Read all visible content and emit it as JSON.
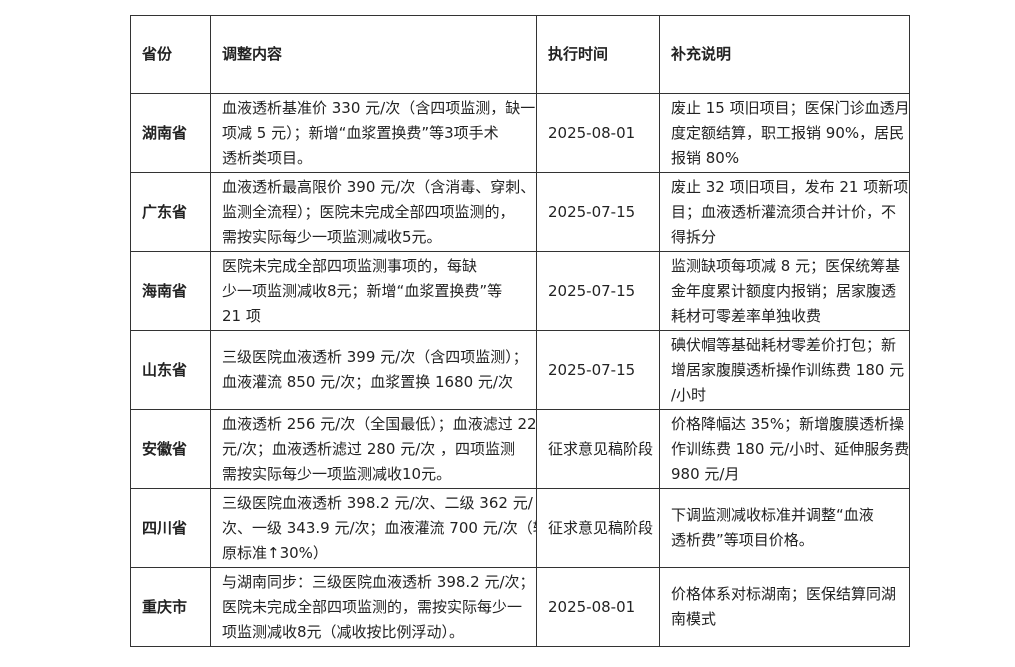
{
  "table": {
    "headers": [
      "省份",
      "调整内容",
      "执行时间",
      "补充说明"
    ],
    "rows": [
      {
        "province": "湖南省",
        "content": [
          "血液透析基准价 330 元/次（含四项监测，缺一",
          "项减 5 元）；新增“血浆置换费”等3项手术",
          "透析类项目。"
        ],
        "date": "2025-08-01",
        "note": [
          "废止 15 项旧项目；医保门诊血透月",
          "度定额结算，职工报销 90%，居民",
          "报销 80%"
        ]
      },
      {
        "province": "广东省",
        "content": [
          "血液透析最高限价 390 元/次（含消毒、穿刺、",
          "监测全流程）；医院未完成全部四项监测的，",
          "需按实际每少一项监测减收5元。"
        ],
        "date": "2025-07-15",
        "note": [
          "废止 32 项旧项目，发布 21 项新项",
          "目；血液透析灌流须合并计价，不",
          "得拆分"
        ]
      },
      {
        "province": "海南省",
        "content": [
          "医院未完成全部四项监测事项的，每缺",
          "少一项监测减收8元；新增“血浆置换费”等",
          "21 项"
        ],
        "date": "2025-07-15",
        "note": [
          "监测缺项每项减 8 元；医保统筹基",
          "金年度累计额度内报销；居家腹透",
          "耗材可零差率单独收费"
        ]
      },
      {
        "province": "山东省",
        "content": [
          "三级医院血液透析 399 元/次（含四项监测）；",
          "血液灌流 850 元/次；血浆置换 1680 元/次"
        ],
        "date": "2025-07-15",
        "note": [
          "碘伏帽等基础耗材零差价打包；新",
          "增居家腹膜透析操作训练费 180 元",
          "/小时"
        ]
      },
      {
        "province": "安徽省",
        "content": [
          "血液透析 256 元/次（全国最低）；血液滤过 220",
          "元/次；血液透析滤过 280 元/次 ，四项监测",
          "需按实际每少一项监测减收10元。"
        ],
        "date": "征求意见稿阶段",
        "note": [
          "价格降幅达 35%；新增腹膜透析操",
          "作训练费 180 元/小时、延伸服务费",
          "980 元/月"
        ]
      },
      {
        "province": "四川省",
        "content": [
          "三级医院血液透析 398.2 元/次、二级 362 元/",
          "次、一级 343.9 元/次；血液灌流 700 元/次（较",
          "原标准↑30%）"
        ],
        "date": "征求意见稿阶段",
        "note": [
          "下调监测减收标准并调整“血液",
          "透析费”等项目价格。"
        ]
      },
      {
        "province": "重庆市",
        "content": [
          "与湖南同步：三级医院血液透析 398.2 元/次；",
          "医院未完成全部四项监测的，需按实际每少一",
          "项监测减收8元（减收按比例浮动）。"
        ],
        "date": "2025-08-01",
        "note": [
          "价格体系对标湖南；医保结算同湖",
          "南模式"
        ]
      }
    ]
  }
}
